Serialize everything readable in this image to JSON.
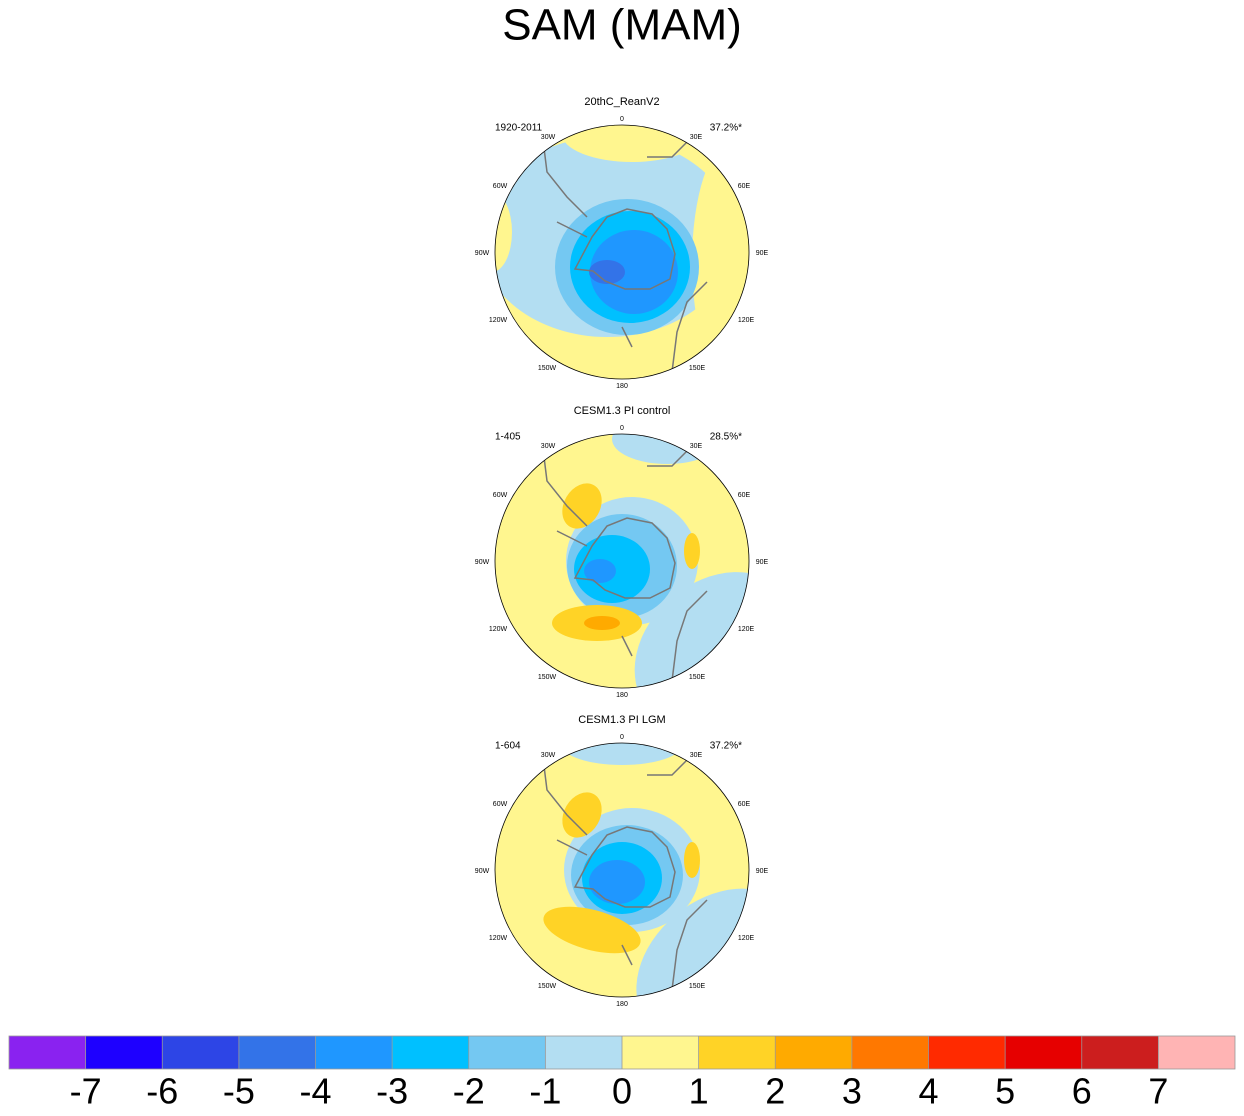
{
  "title": "SAM (MAM)",
  "panels": [
    {
      "title": "20thC_ReanV2",
      "period": "1920-2011",
      "variance": "37.2%*"
    },
    {
      "title": "CESM1.3 PI control",
      "period": "1-405",
      "variance": "28.5%*"
    },
    {
      "title": "CESM1.3 PI LGM",
      "period": "1-604",
      "variance": "37.2%*"
    }
  ],
  "lon_labels": [
    "0",
    "30E",
    "60E",
    "90E",
    "120E",
    "150E",
    "180",
    "150W",
    "120W",
    "90W",
    "60W",
    "30W"
  ],
  "colorbar": {
    "colors": [
      "#8a22f0",
      "#1e00ff",
      "#2d45e6",
      "#3373e8",
      "#1f97ff",
      "#00c0ff",
      "#74c8f2",
      "#b3def2",
      "#fff68f",
      "#ffd326",
      "#ffaa00",
      "#ff7800",
      "#ff2a00",
      "#e60000",
      "#cc1e1e",
      "#ffb4b4"
    ],
    "ticks": [
      -7,
      -6,
      -5,
      -4,
      -3,
      -2,
      -1,
      0,
      1,
      2,
      3,
      4,
      5,
      6,
      7
    ]
  }
}
